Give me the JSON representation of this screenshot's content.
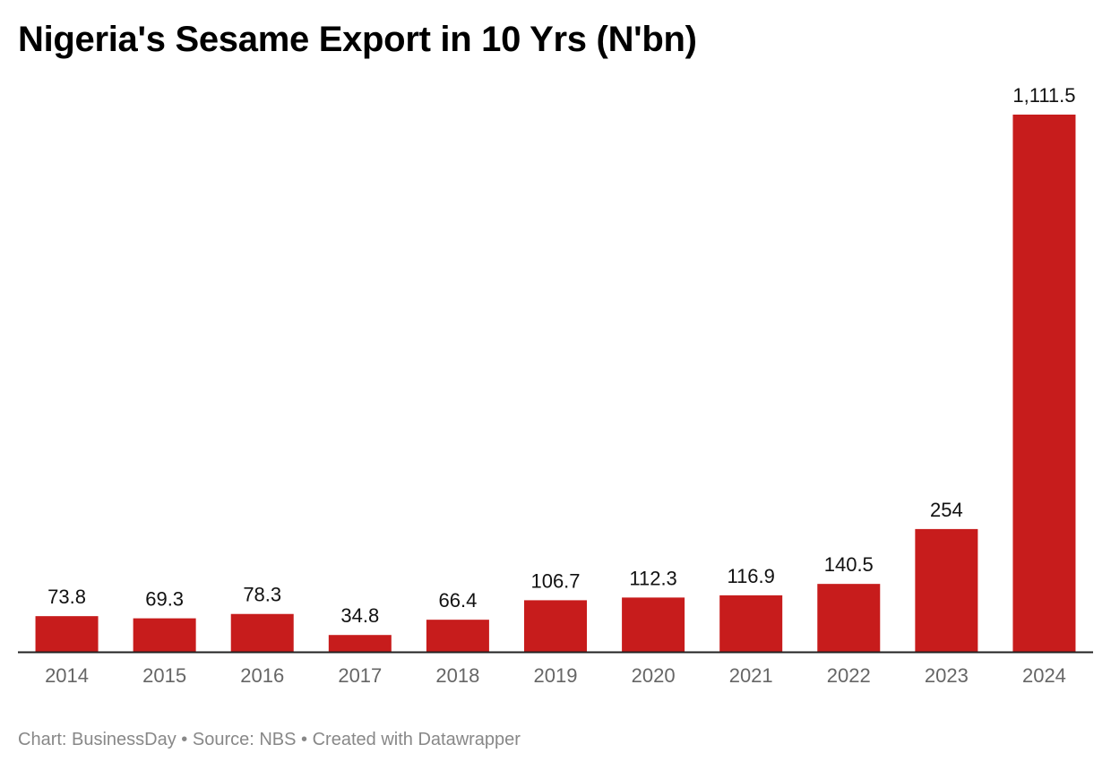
{
  "chart_data": {
    "type": "bar",
    "title": "Nigeria's Sesame Export in 10 Yrs (N'bn)",
    "categories": [
      "2014",
      "2015",
      "2016",
      "2017",
      "2018",
      "2019",
      "2020",
      "2021",
      "2022",
      "2023",
      "2024"
    ],
    "values": [
      73.8,
      69.3,
      78.3,
      34.8,
      66.4,
      106.7,
      112.3,
      116.9,
      140.5,
      254,
      1111.5
    ],
    "value_labels": [
      "73.8",
      "69.3",
      "78.3",
      "34.8",
      "66.4",
      "106.7",
      "112.3",
      "116.9",
      "140.5",
      "254",
      "1,111.5"
    ],
    "xlabel": "",
    "ylabel": "",
    "ylim": [
      0,
      1111.5
    ],
    "grid": false,
    "legend": "none",
    "bar_color": "#c71c1c",
    "axis_color": "#222222",
    "tick_label_color": "#666666",
    "value_label_color": "#111111"
  },
  "footer": {
    "credit": "Chart: BusinessDay",
    "source": "Source: NBS",
    "tool": "Created with Datawrapper"
  }
}
